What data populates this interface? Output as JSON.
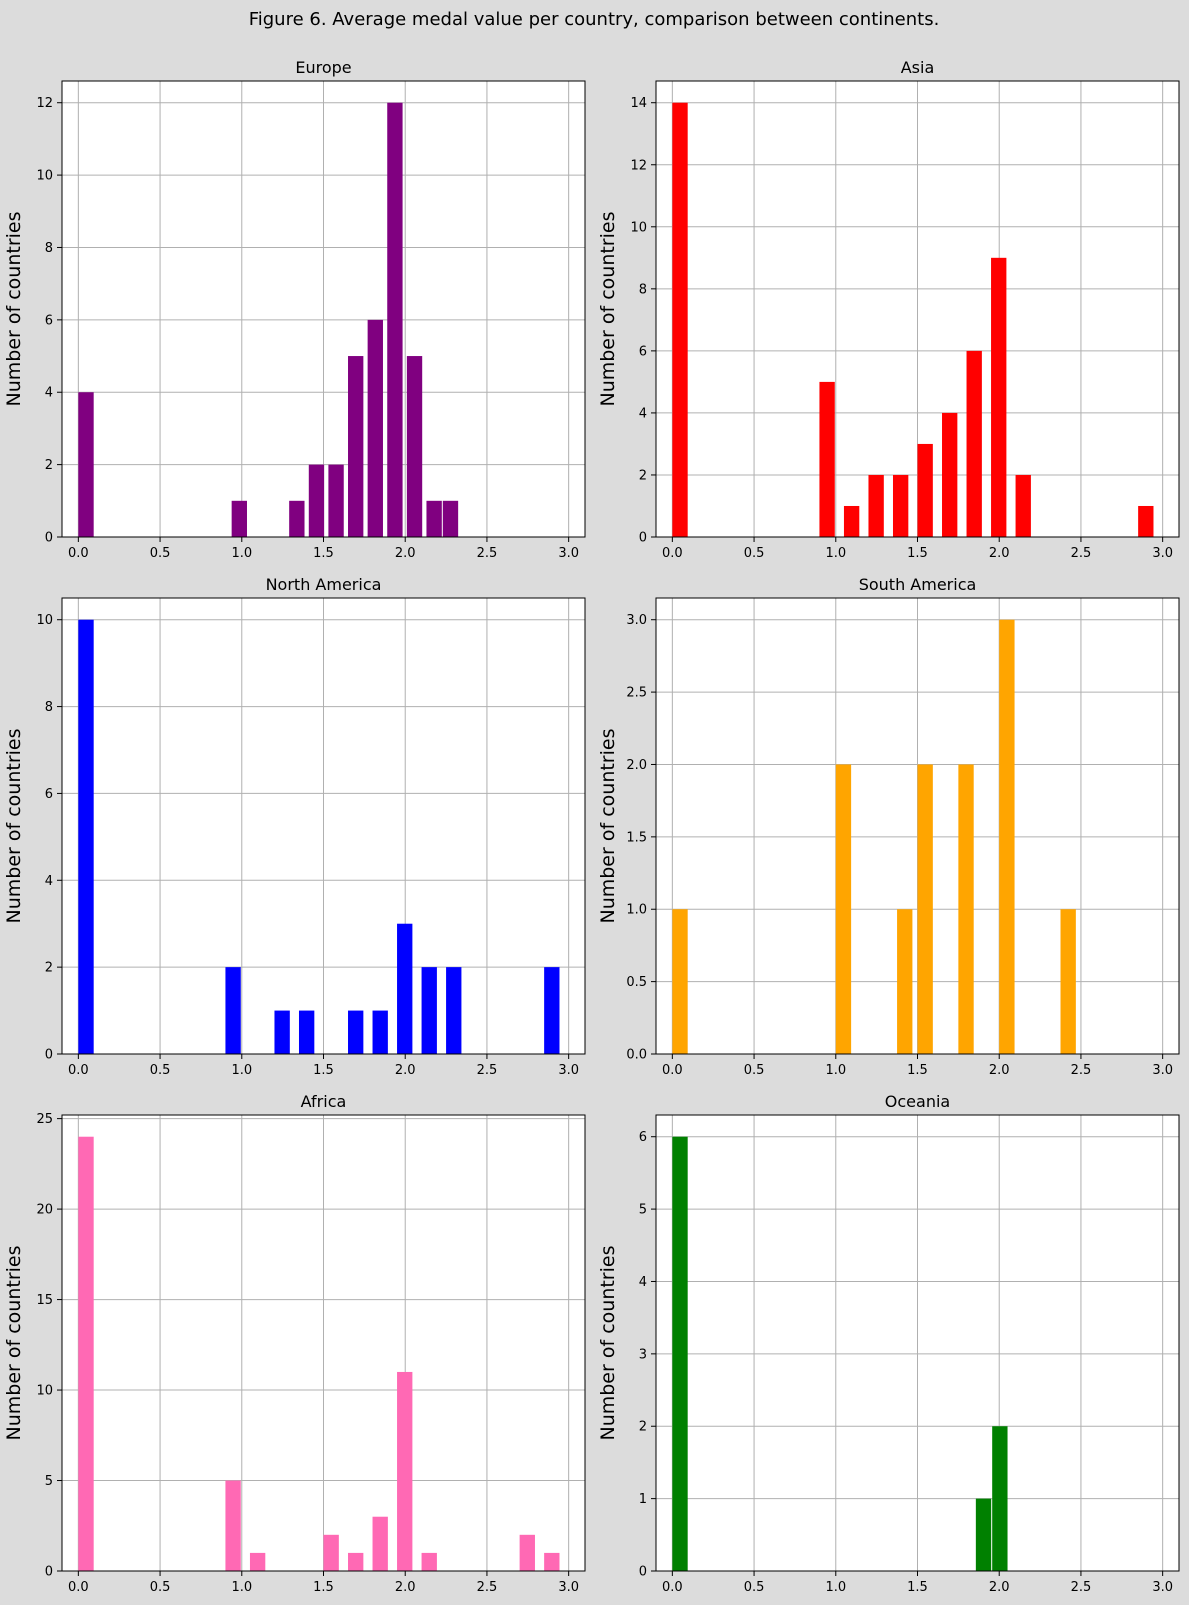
{
  "figure": {
    "title": "Figure 6. Average medal value per country, comparison between continents."
  },
  "chart_data": [
    {
      "type": "bar",
      "title": "Europe",
      "xlabel": "",
      "ylabel": "Number of countries",
      "color": "#800080",
      "xlim": [
        -0.1,
        3.1
      ],
      "xticks": [
        "0.0",
        "0.5",
        "1.0",
        "1.5",
        "2.0",
        "2.5",
        "3.0"
      ],
      "ylim": [
        0,
        12.6
      ],
      "yticks": [
        "0",
        "2",
        "4",
        "6",
        "8",
        "10",
        "12"
      ],
      "bars": [
        {
          "x0": 0.0,
          "x1": 0.1,
          "value": 4
        },
        {
          "x0": 0.938,
          "x1": 1.038,
          "value": 1
        },
        {
          "x0": 1.29,
          "x1": 1.39,
          "value": 1
        },
        {
          "x0": 1.41,
          "x1": 1.51,
          "value": 2
        },
        {
          "x0": 1.53,
          "x1": 1.63,
          "value": 2
        },
        {
          "x0": 1.65,
          "x1": 1.75,
          "value": 5
        },
        {
          "x0": 1.77,
          "x1": 1.87,
          "value": 6
        },
        {
          "x0": 1.89,
          "x1": 1.99,
          "value": 12
        },
        {
          "x0": 2.01,
          "x1": 2.11,
          "value": 5
        },
        {
          "x0": 2.13,
          "x1": 2.23,
          "value": 1
        },
        {
          "x0": 2.23,
          "x1": 2.33,
          "value": 1
        }
      ]
    },
    {
      "type": "bar",
      "title": "Asia",
      "xlabel": "",
      "ylabel": "Number of countries",
      "color": "#ff0000",
      "xlim": [
        -0.1,
        3.1
      ],
      "xticks": [
        "0.0",
        "0.5",
        "1.0",
        "1.5",
        "2.0",
        "2.5",
        "3.0"
      ],
      "ylim": [
        0,
        14.7
      ],
      "yticks": [
        "0",
        "2",
        "4",
        "6",
        "8",
        "10",
        "12",
        "14"
      ],
      "bars": [
        {
          "x0": 0.0,
          "x1": 0.1,
          "value": 14
        },
        {
          "x0": 0.9,
          "x1": 1.0,
          "value": 5
        },
        {
          "x0": 1.05,
          "x1": 1.15,
          "value": 1
        },
        {
          "x0": 1.2,
          "x1": 1.3,
          "value": 2
        },
        {
          "x0": 1.35,
          "x1": 1.45,
          "value": 2
        },
        {
          "x0": 1.5,
          "x1": 1.6,
          "value": 3
        },
        {
          "x0": 1.65,
          "x1": 1.75,
          "value": 4
        },
        {
          "x0": 1.8,
          "x1": 1.9,
          "value": 6
        },
        {
          "x0": 1.95,
          "x1": 2.05,
          "value": 9
        },
        {
          "x0": 2.1,
          "x1": 2.2,
          "value": 2
        },
        {
          "x0": 2.85,
          "x1": 2.95,
          "value": 1
        }
      ]
    },
    {
      "type": "bar",
      "title": "North America",
      "xlabel": "",
      "ylabel": "Number of countries",
      "color": "#0000ff",
      "xlim": [
        -0.1,
        3.1
      ],
      "xticks": [
        "0.0",
        "0.5",
        "1.0",
        "1.5",
        "2.0",
        "2.5",
        "3.0"
      ],
      "ylim": [
        0,
        10.5
      ],
      "yticks": [
        "0",
        "2",
        "4",
        "6",
        "8",
        "10"
      ],
      "bars": [
        {
          "x0": 0.0,
          "x1": 0.1,
          "value": 10
        },
        {
          "x0": 0.9,
          "x1": 1.0,
          "value": 2
        },
        {
          "x0": 1.2,
          "x1": 1.3,
          "value": 1
        },
        {
          "x0": 1.35,
          "x1": 1.45,
          "value": 1
        },
        {
          "x0": 1.65,
          "x1": 1.75,
          "value": 1
        },
        {
          "x0": 1.8,
          "x1": 1.9,
          "value": 1
        },
        {
          "x0": 1.95,
          "x1": 2.05,
          "value": 3
        },
        {
          "x0": 2.1,
          "x1": 2.2,
          "value": 2
        },
        {
          "x0": 2.25,
          "x1": 2.35,
          "value": 2
        },
        {
          "x0": 2.85,
          "x1": 2.95,
          "value": 2
        }
      ]
    },
    {
      "type": "bar",
      "title": "South America",
      "xlabel": "",
      "ylabel": "Number of countries",
      "color": "#ffa500",
      "xlim": [
        -0.1,
        3.1
      ],
      "xticks": [
        "0.0",
        "0.5",
        "1.0",
        "1.5",
        "2.0",
        "2.5",
        "3.0"
      ],
      "ylim": [
        0,
        3.15
      ],
      "yticks": [
        "0.0",
        "0.5",
        "1.0",
        "1.5",
        "2.0",
        "2.5",
        "3.0"
      ],
      "bars": [
        {
          "x0": 0.0,
          "x1": 0.1,
          "value": 1
        },
        {
          "x0": 1.0,
          "x1": 1.1,
          "value": 2
        },
        {
          "x0": 1.375,
          "x1": 1.475,
          "value": 1
        },
        {
          "x0": 1.5,
          "x1": 1.6,
          "value": 2
        },
        {
          "x0": 1.75,
          "x1": 1.85,
          "value": 2
        },
        {
          "x0": 2.0,
          "x1": 2.1,
          "value": 3
        },
        {
          "x0": 2.375,
          "x1": 2.475,
          "value": 1
        }
      ]
    },
    {
      "type": "bar",
      "title": "Africa",
      "xlabel": "",
      "ylabel": "Number of countries",
      "color": "#ff69b4",
      "xlim": [
        -0.1,
        3.1
      ],
      "xticks": [
        "0.0",
        "0.5",
        "1.0",
        "1.5",
        "2.0",
        "2.5",
        "3.0"
      ],
      "ylim": [
        0,
        25.2
      ],
      "yticks": [
        "0",
        "5",
        "10",
        "15",
        "20",
        "25"
      ],
      "bars": [
        {
          "x0": 0.0,
          "x1": 0.1,
          "value": 24
        },
        {
          "x0": 0.9,
          "x1": 1.0,
          "value": 5
        },
        {
          "x0": 1.05,
          "x1": 1.15,
          "value": 1
        },
        {
          "x0": 1.5,
          "x1": 1.6,
          "value": 2
        },
        {
          "x0": 1.65,
          "x1": 1.75,
          "value": 1
        },
        {
          "x0": 1.8,
          "x1": 1.9,
          "value": 3
        },
        {
          "x0": 1.95,
          "x1": 2.05,
          "value": 11
        },
        {
          "x0": 2.1,
          "x1": 2.2,
          "value": 1
        },
        {
          "x0": 2.7,
          "x1": 2.8,
          "value": 2
        },
        {
          "x0": 2.85,
          "x1": 2.95,
          "value": 1
        }
      ]
    },
    {
      "type": "bar",
      "title": "Oceania",
      "xlabel": "",
      "ylabel": "Number of countries",
      "color": "#008000",
      "xlim": [
        -0.1,
        3.1
      ],
      "xticks": [
        "0.0",
        "0.5",
        "1.0",
        "1.5",
        "2.0",
        "2.5",
        "3.0"
      ],
      "ylim": [
        0,
        6.3
      ],
      "yticks": [
        "0",
        "1",
        "2",
        "3",
        "4",
        "5",
        "6"
      ],
      "bars": [
        {
          "x0": 0.0,
          "x1": 0.1,
          "value": 6
        },
        {
          "x0": 1.857,
          "x1": 1.957,
          "value": 1
        },
        {
          "x0": 1.957,
          "x1": 2.057,
          "value": 2
        }
      ]
    }
  ]
}
